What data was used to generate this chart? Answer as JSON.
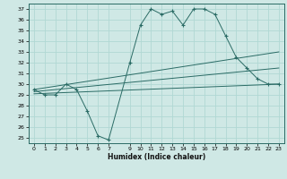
{
  "xlabel": "Humidex (Indice chaleur)",
  "x_ticks": [
    0,
    1,
    2,
    3,
    4,
    5,
    6,
    7,
    9,
    10,
    11,
    12,
    13,
    14,
    15,
    16,
    17,
    18,
    19,
    20,
    21,
    22,
    23
  ],
  "xlim": [
    -0.5,
    23.5
  ],
  "ylim": [
    24.5,
    37.5
  ],
  "yticks": [
    25,
    26,
    27,
    28,
    29,
    30,
    31,
    32,
    33,
    34,
    35,
    36,
    37
  ],
  "bg_color": "#cfe8e5",
  "grid_color": "#b0d8d4",
  "line_color": "#2a6b65",
  "series": {
    "main": {
      "x": [
        0,
        1,
        2,
        3,
        4,
        5,
        6,
        7,
        9,
        10,
        11,
        12,
        13,
        14,
        15,
        16,
        17,
        18,
        19,
        20,
        21,
        22,
        23
      ],
      "y": [
        29.5,
        29.0,
        29.0,
        30.0,
        29.5,
        27.5,
        25.2,
        24.8,
        32.0,
        35.5,
        37.0,
        36.5,
        36.8,
        35.5,
        37.0,
        37.0,
        36.5,
        34.5,
        32.5,
        31.5,
        30.5,
        30.0,
        30.0
      ]
    },
    "line_top": {
      "x": [
        0,
        23
      ],
      "y": [
        29.5,
        33.0
      ]
    },
    "line_mid": {
      "x": [
        0,
        23
      ],
      "y": [
        29.3,
        31.5
      ]
    },
    "line_bot": {
      "x": [
        0,
        23
      ],
      "y": [
        29.1,
        30.0
      ]
    }
  }
}
